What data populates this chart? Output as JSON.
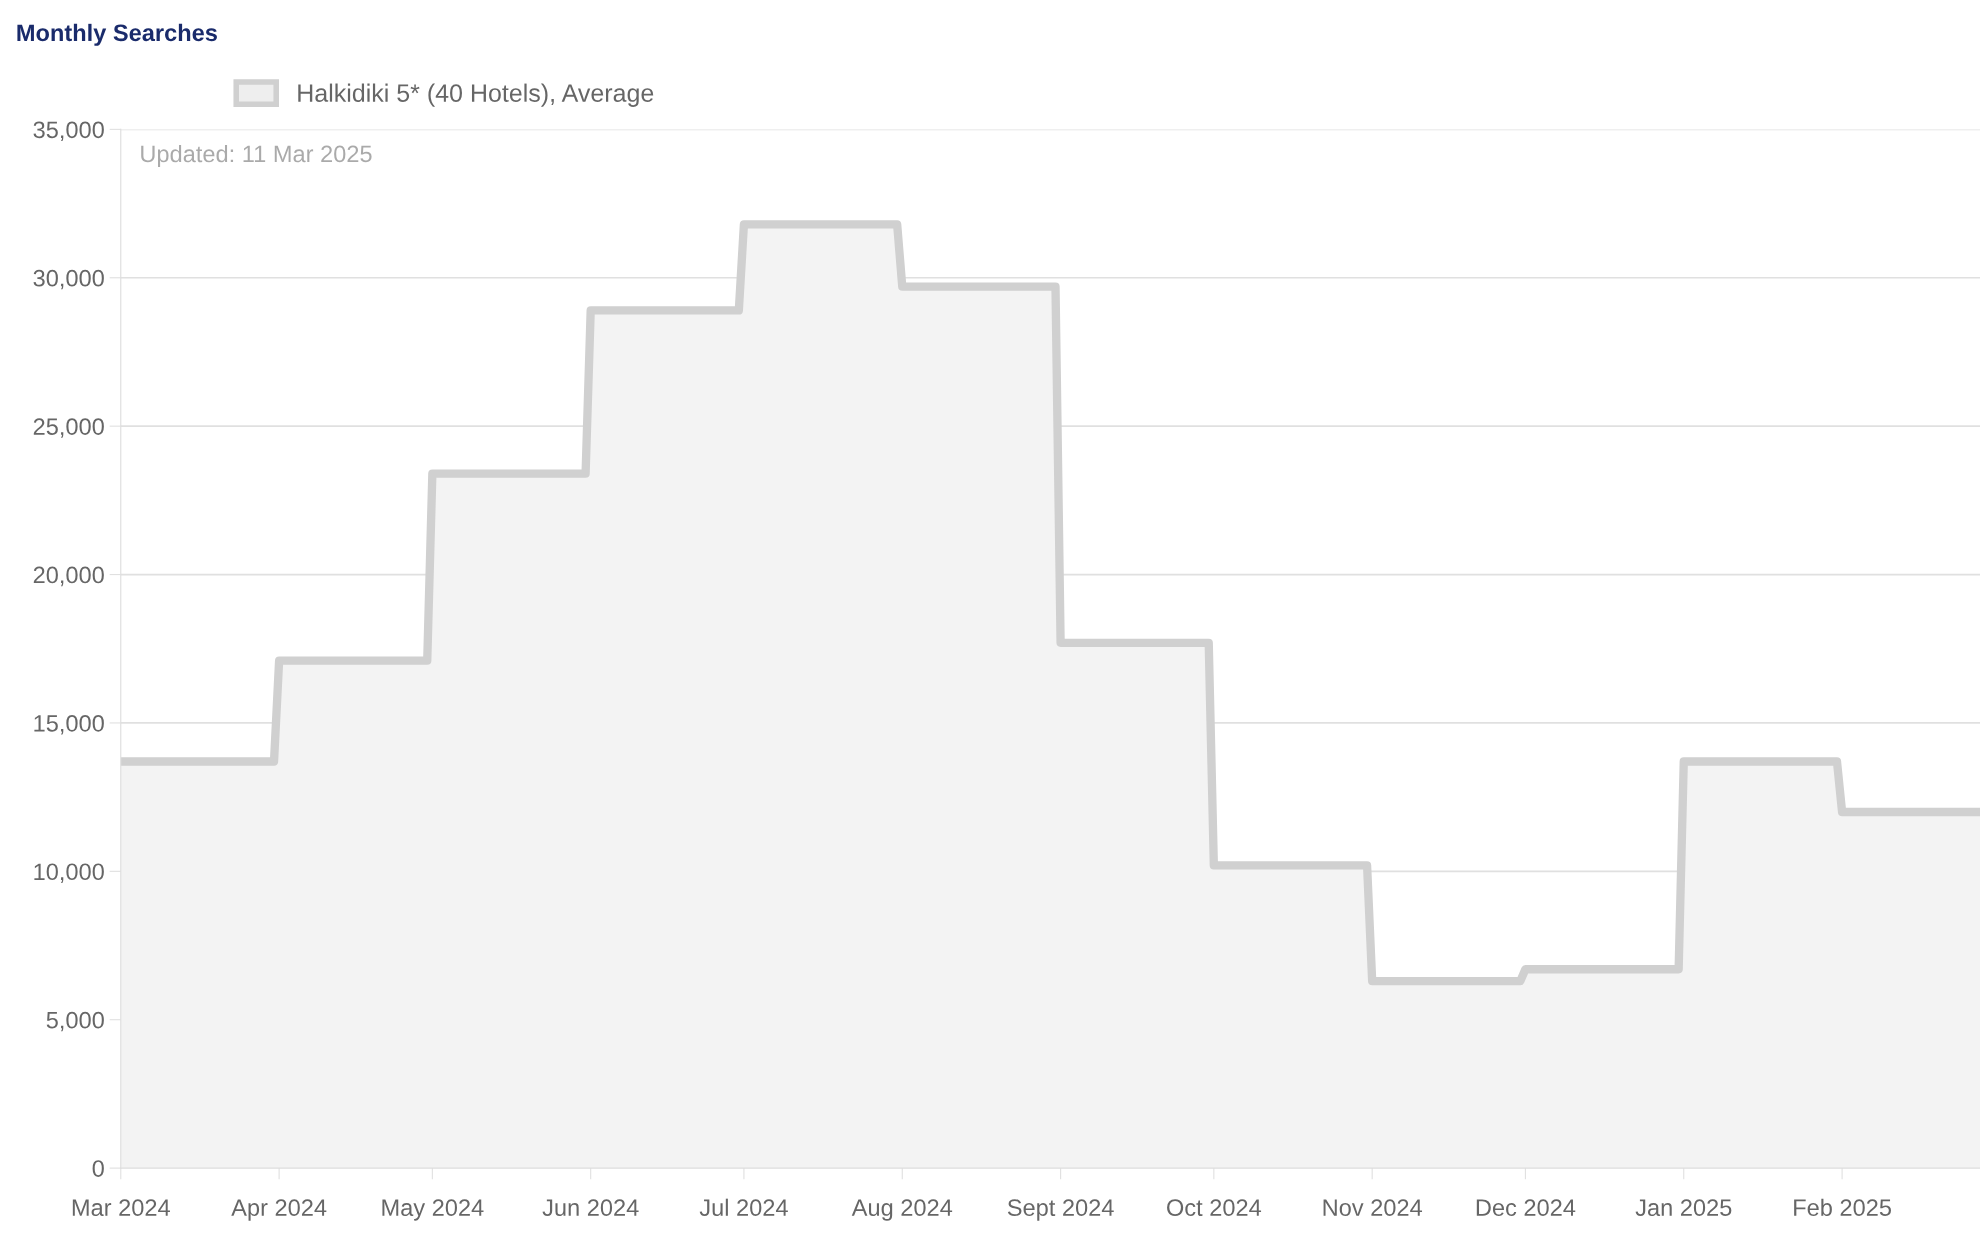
{
  "chart_data": {
    "type": "area",
    "title": "Monthly Searches",
    "x": [
      "2024-03-01",
      "2024-03-31",
      "2024-04-01",
      "2024-04-30",
      "2024-05-01",
      "2024-05-31",
      "2024-06-01",
      "2024-06-30",
      "2024-07-01",
      "2024-07-31",
      "2024-08-01",
      "2024-08-31",
      "2024-09-01",
      "2024-09-30",
      "2024-10-01",
      "2024-10-31",
      "2024-11-01",
      "2024-11-30",
      "2024-12-01",
      "2024-12-31",
      "2025-01-01",
      "2025-01-31",
      "2025-02-01",
      "2025-02-28"
    ],
    "series": [
      {
        "name": "Halkidiki 5* (40 Hotels), Average",
        "color": "#d0d0d0",
        "values": [
          13700,
          13700,
          17100,
          17100,
          23400,
          23400,
          28900,
          28900,
          31800,
          31800,
          29700,
          29700,
          17700,
          17700,
          10200,
          10200,
          6300,
          6300,
          6700,
          6700,
          13700,
          13700,
          12000,
          12000
        ]
      }
    ],
    "xlim": [
      "2024-03-01",
      "2025-02-28"
    ],
    "xticks": [
      {
        "value": "2024-03-01",
        "label": "Mar 2024"
      },
      {
        "value": "2024-04-01",
        "label": "Apr 2024"
      },
      {
        "value": "2024-05-01",
        "label": "May 2024"
      },
      {
        "value": "2024-06-01",
        "label": "Jun 2024"
      },
      {
        "value": "2024-07-01",
        "label": "Jul 2024"
      },
      {
        "value": "2024-08-01",
        "label": "Aug 2024"
      },
      {
        "value": "2024-09-01",
        "label": "Sept 2024"
      },
      {
        "value": "2024-10-01",
        "label": "Oct 2024"
      },
      {
        "value": "2024-11-01",
        "label": "Nov 2024"
      },
      {
        "value": "2024-12-01",
        "label": "Dec 2024"
      },
      {
        "value": "2025-01-01",
        "label": "Jan 2025"
      },
      {
        "value": "2025-02-01",
        "label": "Feb 2025"
      }
    ],
    "ylim": [
      0,
      35000
    ],
    "yticks": [
      0,
      {
        "value": 5000,
        "label": "5,000"
      },
      {
        "value": 10000,
        "label": "10,000"
      },
      {
        "value": 15000,
        "label": "15,000"
      },
      {
        "value": 20000,
        "label": "20,000"
      },
      {
        "value": 25000,
        "label": "25,000"
      },
      {
        "value": 30000,
        "label": "30,000"
      },
      {
        "value": 35000,
        "label": "35,000"
      }
    ],
    "grid": "y",
    "legend": "top left",
    "annotations": [
      "Updated: 11 Mar 2025"
    ]
  }
}
